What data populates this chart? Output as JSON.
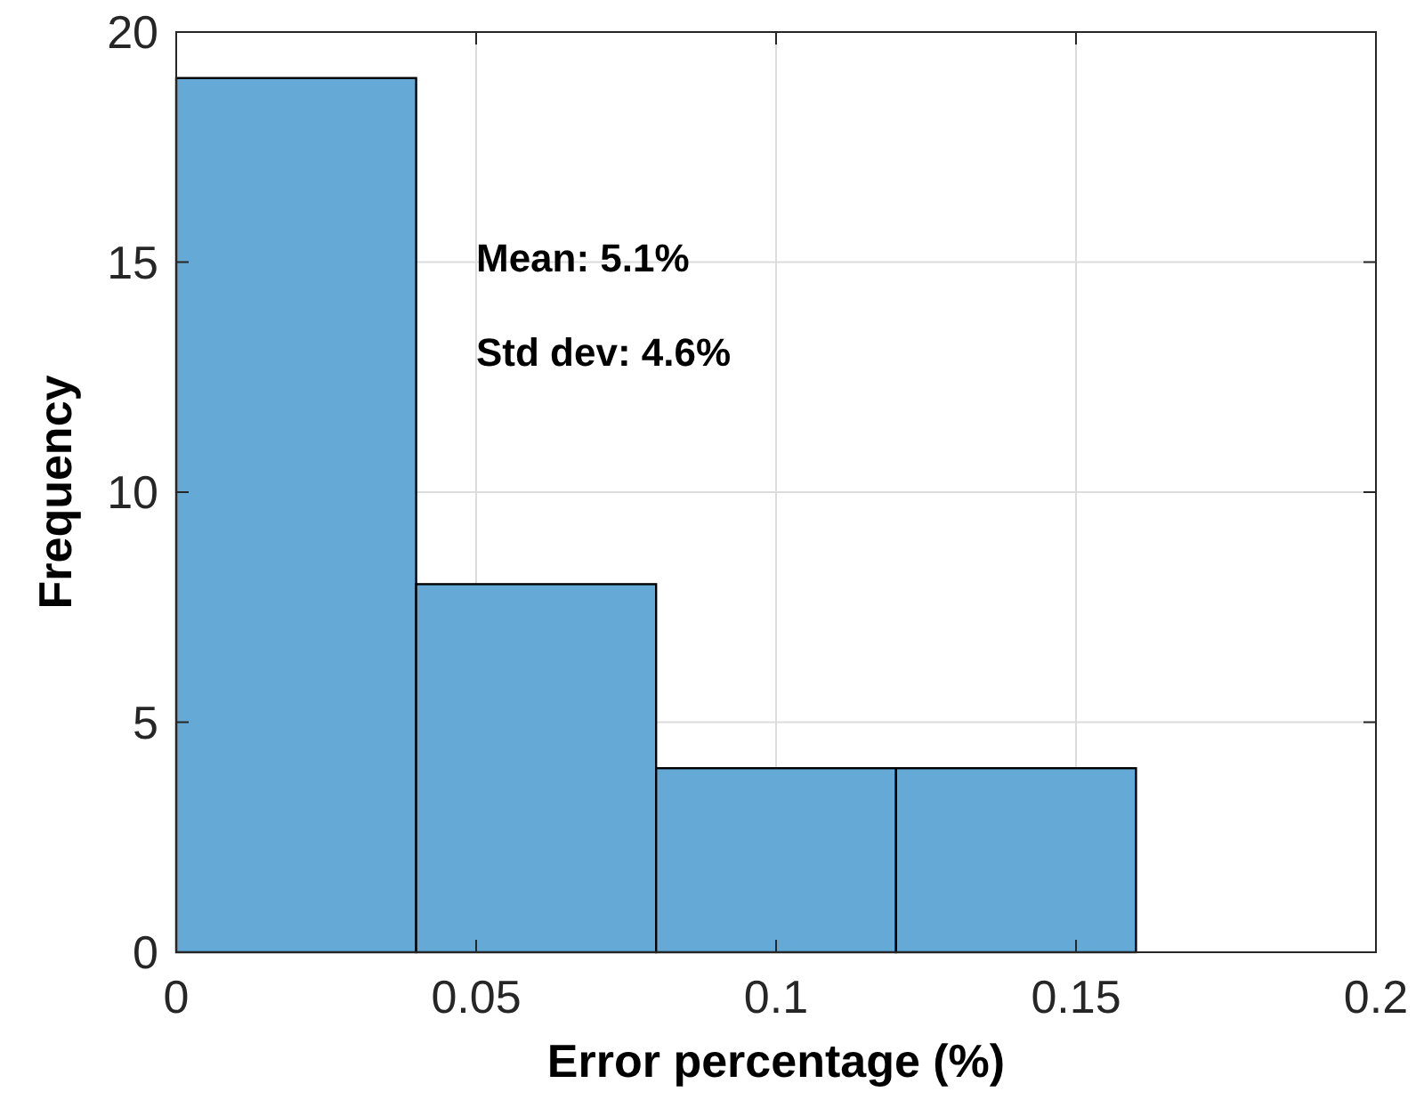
{
  "chart_data": {
    "type": "histogram",
    "xlabel": "Error percentage (%)",
    "ylabel": "Frequency",
    "bins": [
      0,
      0.04,
      0.08,
      0.12,
      0.16
    ],
    "values": [
      19,
      8,
      4,
      4
    ],
    "color": "#65a9d7",
    "xlim": [
      0,
      0.2
    ],
    "xticks": [
      0,
      {
        "value": 0.05,
        "label": "0.05"
      },
      {
        "value": 0.1,
        "label": "0.1"
      },
      {
        "value": 0.15,
        "label": "0.15"
      },
      {
        "value": 0.2,
        "label": "0.2"
      }
    ],
    "ylim": [
      0,
      20
    ],
    "yticks": [
      0,
      5,
      10,
      15,
      20
    ],
    "grid": true,
    "annotations": [
      "Mean: 5.1%",
      "Std dev: 4.6%"
    ]
  }
}
